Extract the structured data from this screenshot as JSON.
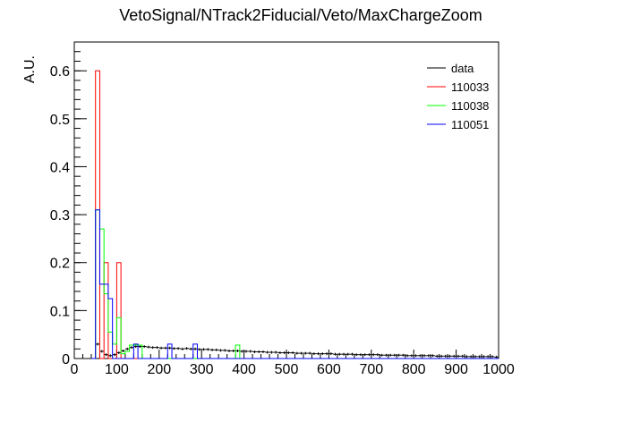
{
  "chart_data": {
    "type": "histogram",
    "title": "VetoSignal/NTrack2Fiducial/Veto/MaxChargeZoom",
    "xlabel": "",
    "ylabel": "A.U.",
    "xlim": [
      0,
      1000
    ],
    "ylim": [
      0,
      0.66
    ],
    "x_ticks": [
      0,
      100,
      200,
      300,
      400,
      500,
      600,
      700,
      800,
      900,
      1000
    ],
    "x_tick_labels": [
      "0",
      "100",
      "200",
      "300",
      "400",
      "500",
      "600",
      "700",
      "800",
      "900",
      "1000"
    ],
    "y_ticks": [
      0,
      0.1,
      0.2,
      0.3,
      0.4,
      0.5,
      0.6
    ],
    "y_tick_labels": [
      "0",
      "0.1",
      "0.2",
      "0.3",
      "0.4",
      "0.5",
      "0.6"
    ],
    "grid": false,
    "legend_position": "top-right",
    "series": [
      {
        "name": "data",
        "color": "#000000",
        "style": "points",
        "bin_width": 10,
        "bins": [
          [
            50,
            60,
            0.03
          ],
          [
            60,
            70,
            0.015
          ],
          [
            70,
            80,
            0.008
          ],
          [
            80,
            90,
            0.006
          ],
          [
            90,
            100,
            0.008
          ],
          [
            100,
            110,
            0.012
          ],
          [
            110,
            120,
            0.016
          ],
          [
            120,
            130,
            0.02
          ],
          [
            130,
            140,
            0.023
          ],
          [
            140,
            150,
            0.025
          ],
          [
            150,
            160,
            0.025
          ],
          [
            160,
            170,
            0.025
          ],
          [
            170,
            180,
            0.024
          ],
          [
            180,
            190,
            0.023
          ],
          [
            190,
            200,
            0.023
          ],
          [
            200,
            210,
            0.022
          ],
          [
            210,
            220,
            0.022
          ],
          [
            220,
            230,
            0.022
          ],
          [
            230,
            240,
            0.021
          ],
          [
            240,
            250,
            0.021
          ],
          [
            250,
            260,
            0.02
          ],
          [
            260,
            270,
            0.021
          ],
          [
            270,
            280,
            0.02
          ],
          [
            280,
            290,
            0.02
          ],
          [
            290,
            300,
            0.019
          ],
          [
            300,
            310,
            0.019
          ],
          [
            310,
            320,
            0.019
          ],
          [
            320,
            330,
            0.018
          ],
          [
            330,
            340,
            0.018
          ],
          [
            340,
            350,
            0.017
          ],
          [
            350,
            360,
            0.017
          ],
          [
            360,
            370,
            0.016
          ],
          [
            370,
            380,
            0.016
          ],
          [
            380,
            390,
            0.016
          ],
          [
            390,
            400,
            0.015
          ],
          [
            400,
            410,
            0.015
          ],
          [
            410,
            420,
            0.015
          ],
          [
            420,
            430,
            0.014
          ],
          [
            430,
            440,
            0.014
          ],
          [
            440,
            450,
            0.014
          ],
          [
            450,
            460,
            0.013
          ],
          [
            460,
            470,
            0.013
          ],
          [
            470,
            480,
            0.013
          ],
          [
            480,
            490,
            0.012
          ],
          [
            490,
            500,
            0.012
          ],
          [
            500,
            510,
            0.012
          ],
          [
            510,
            520,
            0.012
          ],
          [
            520,
            530,
            0.011
          ],
          [
            530,
            540,
            0.011
          ],
          [
            540,
            550,
            0.011
          ],
          [
            550,
            560,
            0.011
          ],
          [
            560,
            570,
            0.01
          ],
          [
            570,
            580,
            0.01
          ],
          [
            580,
            590,
            0.01
          ],
          [
            590,
            600,
            0.01
          ],
          [
            600,
            610,
            0.01
          ],
          [
            610,
            620,
            0.009
          ],
          [
            620,
            630,
            0.009
          ],
          [
            630,
            640,
            0.009
          ],
          [
            640,
            650,
            0.009
          ],
          [
            650,
            660,
            0.009
          ],
          [
            660,
            670,
            0.008
          ],
          [
            670,
            680,
            0.008
          ],
          [
            680,
            690,
            0.008
          ],
          [
            690,
            700,
            0.008
          ],
          [
            700,
            710,
            0.008
          ],
          [
            710,
            720,
            0.008
          ],
          [
            720,
            730,
            0.007
          ],
          [
            730,
            740,
            0.007
          ],
          [
            740,
            750,
            0.007
          ],
          [
            750,
            760,
            0.007
          ],
          [
            760,
            770,
            0.007
          ],
          [
            770,
            780,
            0.007
          ],
          [
            780,
            790,
            0.006
          ],
          [
            790,
            800,
            0.006
          ],
          [
            800,
            810,
            0.006
          ],
          [
            810,
            820,
            0.006
          ],
          [
            820,
            830,
            0.006
          ],
          [
            830,
            840,
            0.006
          ],
          [
            840,
            850,
            0.006
          ],
          [
            850,
            860,
            0.005
          ],
          [
            860,
            870,
            0.005
          ],
          [
            870,
            880,
            0.005
          ],
          [
            880,
            890,
            0.005
          ],
          [
            890,
            900,
            0.005
          ],
          [
            900,
            910,
            0.005
          ],
          [
            910,
            920,
            0.005
          ],
          [
            920,
            930,
            0.004
          ],
          [
            930,
            940,
            0.004
          ],
          [
            940,
            950,
            0.004
          ],
          [
            950,
            960,
            0.004
          ],
          [
            960,
            970,
            0.004
          ],
          [
            970,
            980,
            0.004
          ],
          [
            980,
            990,
            0.004
          ],
          [
            990,
            1000,
            0.003
          ]
        ]
      },
      {
        "name": "110033",
        "color": "#ff0000",
        "style": "step",
        "bins": [
          [
            40,
            50,
            0.0
          ],
          [
            50,
            60,
            0.6
          ],
          [
            60,
            70,
            0.0
          ],
          [
            70,
            80,
            0.2
          ],
          [
            80,
            90,
            0.0
          ],
          [
            90,
            100,
            0.0
          ],
          [
            100,
            110,
            0.2
          ],
          [
            110,
            120,
            0.0
          ],
          [
            120,
            1000,
            0.0
          ]
        ]
      },
      {
        "name": "110038",
        "color": "#00ff00",
        "style": "step",
        "bins": [
          [
            40,
            50,
            0.0
          ],
          [
            50,
            60,
            0.31
          ],
          [
            60,
            70,
            0.27
          ],
          [
            70,
            80,
            0.135
          ],
          [
            80,
            90,
            0.055
          ],
          [
            90,
            100,
            0.03
          ],
          [
            100,
            110,
            0.085
          ],
          [
            110,
            120,
            0.01
          ],
          [
            120,
            130,
            0.015
          ],
          [
            130,
            140,
            0.028
          ],
          [
            140,
            150,
            0.028
          ],
          [
            150,
            160,
            0.028
          ],
          [
            160,
            170,
            0.0
          ],
          [
            170,
            380,
            0.0
          ],
          [
            380,
            390,
            0.028
          ],
          [
            390,
            400,
            0.0
          ],
          [
            400,
            1000,
            0.0
          ]
        ]
      },
      {
        "name": "110051",
        "color": "#0000ff",
        "style": "step",
        "bins": [
          [
            40,
            50,
            0.0
          ],
          [
            50,
            60,
            0.31
          ],
          [
            60,
            70,
            0.155
          ],
          [
            70,
            80,
            0.155
          ],
          [
            80,
            90,
            0.125
          ],
          [
            90,
            100,
            0.0
          ],
          [
            100,
            140,
            0.0
          ],
          [
            140,
            150,
            0.03
          ],
          [
            150,
            160,
            0.0
          ],
          [
            160,
            220,
            0.0
          ],
          [
            220,
            230,
            0.03
          ],
          [
            230,
            280,
            0.0
          ],
          [
            280,
            290,
            0.03
          ],
          [
            290,
            300,
            0.0
          ],
          [
            300,
            1000,
            0.0
          ]
        ]
      }
    ]
  }
}
